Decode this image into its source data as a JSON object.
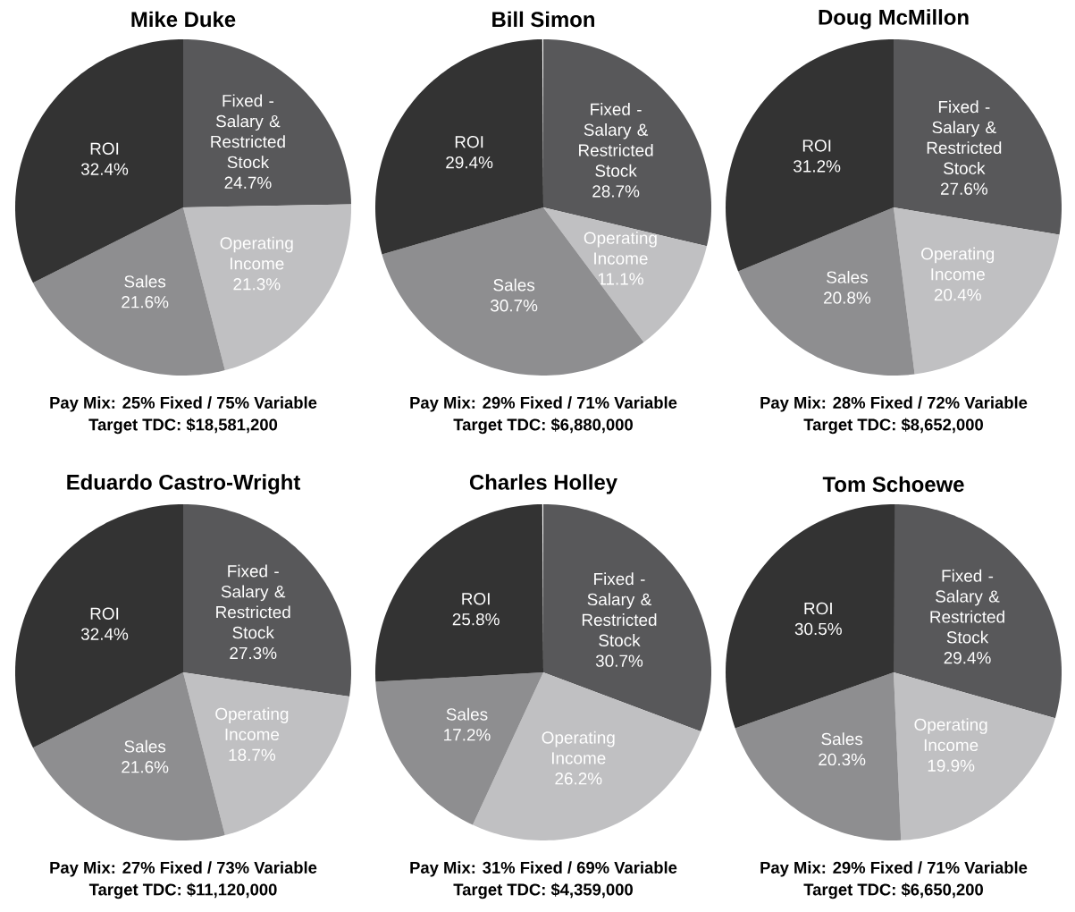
{
  "chart_data": [
    {
      "type": "pie",
      "title": "Mike Duke",
      "categories": [
        "Fixed - Salary & Restricted Stock",
        "Operating Income",
        "Sales",
        "ROI"
      ],
      "values": [
        24.7,
        21.3,
        21.6,
        32.4
      ],
      "value_labels": [
        "24.7%",
        "21.3%",
        "21.6%",
        "32.4%"
      ],
      "colors": [
        "#58585a",
        "#c0c0c2",
        "#8e8e90",
        "#333333"
      ],
      "annotations": [
        "Pay Mix: 25% Fixed / 75% Variable",
        "Target TDC: $18,581,200"
      ]
    },
    {
      "type": "pie",
      "title": "Bill Simon",
      "categories": [
        "Fixed - Salary & Restricted Stock",
        "Operating Income",
        "Sales",
        "ROI"
      ],
      "values": [
        28.7,
        11.1,
        30.7,
        29.4
      ],
      "value_labels": [
        "28.7%",
        "11.1%",
        "30.7%",
        "29.4%"
      ],
      "colors": [
        "#58585a",
        "#c0c0c2",
        "#8e8e90",
        "#333333"
      ],
      "annotations": [
        "Pay Mix: 29% Fixed / 71% Variable",
        "Target TDC: $6,880,000"
      ]
    },
    {
      "type": "pie",
      "title": "Doug McMillon",
      "categories": [
        "Fixed - Salary & Restricted Stock",
        "Operating Income",
        "Sales",
        "ROI"
      ],
      "values": [
        27.6,
        20.4,
        20.8,
        31.2
      ],
      "value_labels": [
        "27.6%",
        "20.4%",
        "20.8%",
        "31.2%"
      ],
      "colors": [
        "#58585a",
        "#c0c0c2",
        "#8e8e90",
        "#333333"
      ],
      "annotations": [
        "Pay Mix: 28% Fixed / 72% Variable",
        "Target TDC: $8,652,000"
      ]
    },
    {
      "type": "pie",
      "title": "Eduardo Castro-Wright",
      "categories": [
        "Fixed - Salary & Restricted Stock",
        "Operating Income",
        "Sales",
        "ROI"
      ],
      "values": [
        27.3,
        18.7,
        21.6,
        32.4
      ],
      "value_labels": [
        "27.3%",
        "18.7%",
        "21.6%",
        "32.4%"
      ],
      "colors": [
        "#58585a",
        "#c0c0c2",
        "#8e8e90",
        "#333333"
      ],
      "annotations": [
        "Pay Mix: 27% Fixed / 73% Variable",
        "Target TDC: $11,120,000"
      ]
    },
    {
      "type": "pie",
      "title": "Charles Holley",
      "categories": [
        "Fixed - Salary & Restricted Stock",
        "Operating Income",
        "Sales",
        "ROI"
      ],
      "values": [
        30.7,
        26.2,
        17.2,
        25.8
      ],
      "value_labels": [
        "30.7%",
        "26.2%",
        "17.2%",
        "25.8%"
      ],
      "colors": [
        "#58585a",
        "#c0c0c2",
        "#8e8e90",
        "#333333"
      ],
      "annotations": [
        "Pay Mix: 31% Fixed / 69% Variable",
        "Target TDC: $4,359,000"
      ]
    },
    {
      "type": "pie",
      "title": "Tom Schoewe",
      "categories": [
        "Fixed - Salary & Restricted Stock",
        "Operating Income",
        "Sales",
        "ROI"
      ],
      "values": [
        29.4,
        19.9,
        20.3,
        30.5
      ],
      "value_labels": [
        "29.4%",
        "19.9%",
        "20.3%",
        "30.5%"
      ],
      "colors": [
        "#58585a",
        "#c0c0c2",
        "#8e8e90",
        "#333333"
      ],
      "annotations": [
        "Pay Mix: 29% Fixed / 71% Variable",
        "Target TDC: $6,650,200"
      ]
    }
  ]
}
